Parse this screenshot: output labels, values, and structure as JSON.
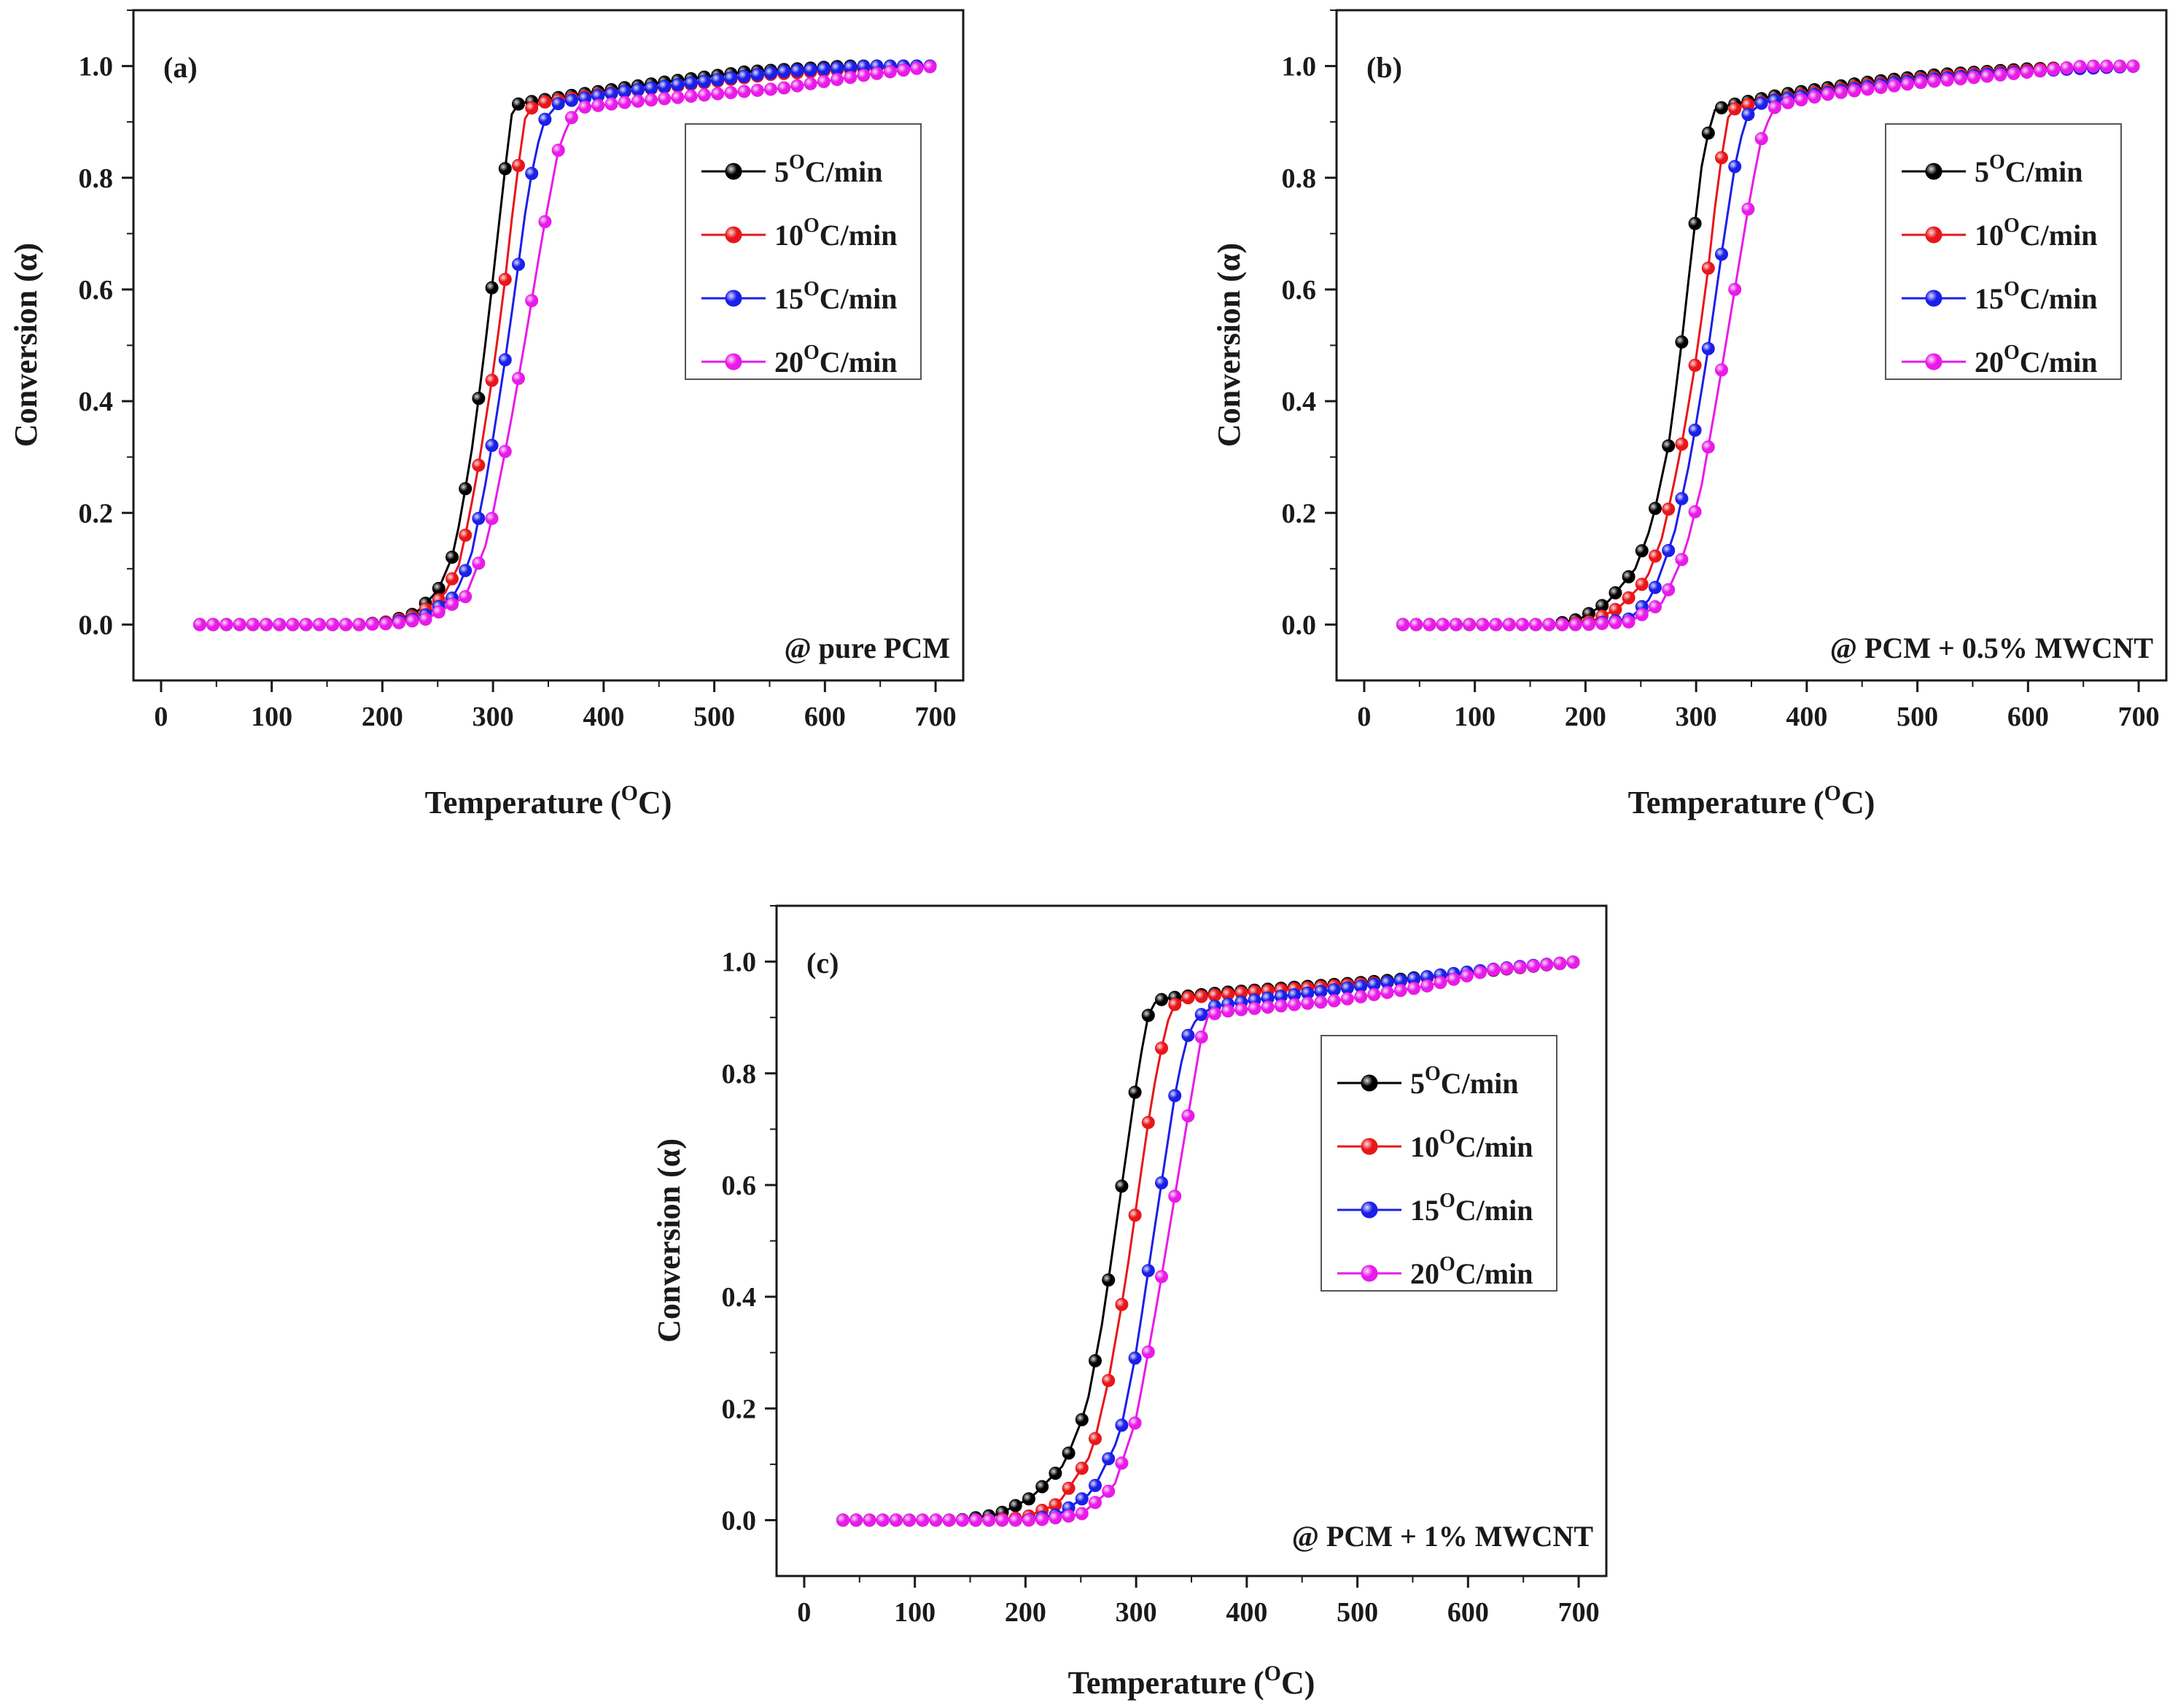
{
  "chart_data": [
    {
      "type": "line",
      "panel_label": "(a)",
      "annotation": "@ pure PCM",
      "xlabel": "Temperature",
      "xunit_base": "C",
      "xunit_sup": "O",
      "ylabel": "Conversion (α)",
      "xlim": [
        -25,
        725
      ],
      "ylim": [
        -0.1,
        1.1
      ],
      "xticks": [
        "0",
        "100",
        "200",
        "300",
        "400",
        "500",
        "600",
        "700"
      ],
      "yticks": [
        "0.0",
        "0.2",
        "0.4",
        "0.6",
        "0.8",
        "1.0"
      ],
      "legend_position": "top-right",
      "series": [
        {
          "name_pre": "5",
          "name_sup": "O",
          "name_post": "C/min",
          "color": "#000000",
          "x": [
            35,
            180,
            205,
            230,
            250,
            265,
            280,
            290,
            300,
            310,
            318,
            330,
            380,
            450,
            530,
            620,
            700
          ],
          "y": [
            0,
            0,
            0.005,
            0.02,
            0.06,
            0.13,
            0.3,
            0.45,
            0.62,
            0.8,
            0.93,
            0.935,
            0.95,
            0.97,
            0.99,
            1.0,
            1.0
          ]
        },
        {
          "name_pre": "10",
          "name_sup": "O",
          "name_post": "C/min",
          "color": "#e8161b",
          "x": [
            35,
            180,
            205,
            230,
            255,
            270,
            285,
            300,
            310,
            320,
            330,
            345,
            400,
            470,
            550,
            630,
            700
          ],
          "y": [
            0,
            0,
            0.005,
            0.015,
            0.05,
            0.11,
            0.26,
            0.45,
            0.6,
            0.78,
            0.92,
            0.935,
            0.95,
            0.965,
            0.985,
            0.995,
            1.0
          ]
        },
        {
          "name_pre": "15",
          "name_sup": "O",
          "name_post": "C/min",
          "color": "#1b1fe8",
          "x": [
            35,
            180,
            205,
            235,
            265,
            280,
            295,
            310,
            320,
            332,
            345,
            360,
            420,
            500,
            560,
            640,
            700
          ],
          "y": [
            0,
            0,
            0.003,
            0.012,
            0.05,
            0.12,
            0.27,
            0.46,
            0.6,
            0.78,
            0.9,
            0.935,
            0.955,
            0.975,
            0.99,
            1.0,
            1.0
          ]
        },
        {
          "name_pre": "20",
          "name_sup": "O",
          "name_post": "C/min",
          "color": "#e81be8",
          "x": [
            35,
            180,
            210,
            240,
            275,
            295,
            315,
            330,
            345,
            360,
            375,
            420,
            500,
            560,
            640,
            700
          ],
          "y": [
            0,
            0,
            0.002,
            0.01,
            0.05,
            0.15,
            0.35,
            0.52,
            0.7,
            0.86,
            0.925,
            0.935,
            0.95,
            0.96,
            0.985,
            1.0
          ]
        }
      ]
    },
    {
      "type": "line",
      "panel_label": "(b)",
      "annotation": "@ PCM + 0.5% MWCNT",
      "xlabel": "Temperature",
      "xunit_base": "C",
      "xunit_sup": "O",
      "ylabel": "Conversion (α)",
      "xlim": [
        -25,
        725
      ],
      "ylim": [
        -0.1,
        1.1
      ],
      "xticks": [
        "0",
        "100",
        "200",
        "300",
        "400",
        "500",
        "600",
        "700"
      ],
      "yticks": [
        "0.0",
        "0.2",
        "0.4",
        "0.6",
        "0.8",
        "1.0"
      ],
      "legend_position": "top-right",
      "series": [
        {
          "name_pre": "5",
          "name_sup": "O",
          "name_post": "C/min",
          "color": "#000000",
          "x": [
            35,
            170,
            195,
            220,
            245,
            260,
            275,
            285,
            295,
            305,
            315,
            330,
            380,
            450,
            520,
            600,
            700
          ],
          "y": [
            0,
            0,
            0.01,
            0.04,
            0.1,
            0.18,
            0.32,
            0.47,
            0.65,
            0.82,
            0.92,
            0.93,
            0.95,
            0.97,
            0.985,
            0.995,
            1.0
          ]
        },
        {
          "name_pre": "10",
          "name_sup": "O",
          "name_post": "C/min",
          "color": "#e8161b",
          "x": [
            35,
            180,
            205,
            230,
            255,
            270,
            285,
            298,
            310,
            320,
            330,
            345,
            400,
            470,
            540,
            620,
            700
          ],
          "y": [
            0,
            0,
            0.005,
            0.03,
            0.08,
            0.16,
            0.3,
            0.45,
            0.62,
            0.8,
            0.92,
            0.93,
            0.95,
            0.97,
            0.985,
            0.995,
            1.0
          ]
        },
        {
          "name_pre": "15",
          "name_sup": "O",
          "name_post": "C/min",
          "color": "#1b1fe8",
          "x": [
            35,
            200,
            240,
            260,
            280,
            295,
            310,
            322,
            335,
            345,
            360,
            410,
            480,
            560,
            640,
            700
          ],
          "y": [
            0,
            0,
            0.01,
            0.05,
            0.16,
            0.3,
            0.48,
            0.65,
            0.82,
            0.91,
            0.935,
            0.95,
            0.97,
            0.985,
            0.995,
            1.0
          ]
        },
        {
          "name_pre": "20",
          "name_sup": "O",
          "name_post": "C/min",
          "color": "#e81be8",
          "x": [
            35,
            200,
            240,
            270,
            290,
            305,
            320,
            335,
            350,
            360,
            372,
            420,
            500,
            580,
            650,
            700
          ],
          "y": [
            0,
            0,
            0.005,
            0.04,
            0.13,
            0.25,
            0.42,
            0.6,
            0.78,
            0.88,
            0.93,
            0.95,
            0.97,
            0.985,
            1.0,
            1.0
          ]
        }
      ]
    },
    {
      "type": "line",
      "panel_label": "(c)",
      "annotation": "@ PCM + 1% MWCNT",
      "xlabel": "Temperature",
      "xunit_base": "C",
      "xunit_sup": "O",
      "ylabel": "Conversion (α)",
      "xlim": [
        -25,
        725
      ],
      "ylim": [
        -0.1,
        1.1
      ],
      "xticks": [
        "0",
        "100",
        "200",
        "300",
        "400",
        "500",
        "600",
        "700"
      ],
      "yticks": [
        "0.0",
        "0.2",
        "0.4",
        "0.6",
        "0.8",
        "1.0"
      ],
      "legend_position": "top-right",
      "series": [
        {
          "name_pre": "5",
          "name_sup": "O",
          "name_post": "C/min",
          "color": "#000000",
          "x": [
            35,
            140,
            175,
            205,
            235,
            255,
            270,
            280,
            290,
            300,
            310,
            318,
            330,
            380,
            450,
            520,
            600,
            700
          ],
          "y": [
            0,
            0,
            0.01,
            0.04,
            0.1,
            0.2,
            0.36,
            0.5,
            0.64,
            0.78,
            0.9,
            0.93,
            0.935,
            0.945,
            0.955,
            0.965,
            0.98,
            1.0
          ]
        },
        {
          "name_pre": "10",
          "name_sup": "O",
          "name_post": "C/min",
          "color": "#e8161b",
          "x": [
            35,
            170,
            200,
            230,
            260,
            275,
            290,
            300,
            310,
            320,
            332,
            345,
            400,
            470,
            540,
            620,
            700
          ],
          "y": [
            0,
            0,
            0.005,
            0.03,
            0.12,
            0.25,
            0.42,
            0.56,
            0.7,
            0.82,
            0.92,
            0.935,
            0.945,
            0.955,
            0.965,
            0.985,
            1.0
          ]
        },
        {
          "name_pre": "15",
          "name_sup": "O",
          "name_post": "C/min",
          "color": "#1b1fe8",
          "x": [
            35,
            200,
            230,
            260,
            285,
            300,
            315,
            325,
            335,
            345,
            355,
            370,
            420,
            500,
            570,
            640,
            700
          ],
          "y": [
            0,
            0,
            0.01,
            0.05,
            0.15,
            0.3,
            0.5,
            0.63,
            0.76,
            0.86,
            0.9,
            0.92,
            0.935,
            0.955,
            0.975,
            0.99,
            1.0
          ]
        },
        {
          "name_pre": "20",
          "name_sup": "O",
          "name_post": "C/min",
          "color": "#e81be8",
          "x": [
            35,
            210,
            250,
            280,
            300,
            320,
            335,
            350,
            362,
            375,
            400,
            480,
            560,
            620,
            700
          ],
          "y": [
            0,
            0,
            0.01,
            0.06,
            0.18,
            0.4,
            0.58,
            0.76,
            0.9,
            0.91,
            0.915,
            0.93,
            0.955,
            0.985,
            1.0
          ]
        }
      ]
    }
  ]
}
